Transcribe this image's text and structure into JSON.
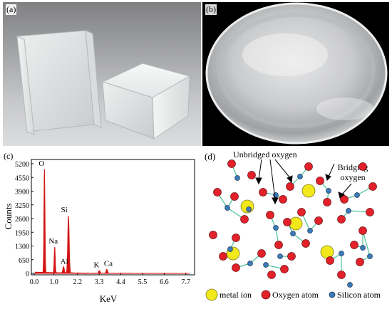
{
  "panels": {
    "a": {
      "label": "(a)"
    },
    "b": {
      "label": "(b)"
    },
    "c": {
      "label": "(c)"
    },
    "d": {
      "label": "(d)"
    }
  },
  "chart_data": {
    "type": "line",
    "xlabel": "KeV",
    "ylabel": "Counts",
    "xlim": [
      0.0,
      8.0
    ],
    "ylim": [
      0,
      5200
    ],
    "x_ticks": [
      "0.0",
      "1.0",
      "2.2",
      "3.3",
      "4.4",
      "5.5",
      "6.6",
      "7.7"
    ],
    "y_ticks": [
      "0",
      "650",
      "1300",
      "1950",
      "2600",
      "3250",
      "3900",
      "4550",
      "5200"
    ],
    "peaks": [
      {
        "element": "O",
        "energy": 0.52,
        "counts": 4900
      },
      {
        "element": "Na",
        "energy": 1.04,
        "counts": 1220
      },
      {
        "element": "Al",
        "energy": 1.49,
        "counts": 290
      },
      {
        "element": "Si",
        "energy": 1.74,
        "counts": 2700
      },
      {
        "element": "K",
        "energy": 3.31,
        "counts": 120
      },
      {
        "element": "Ca",
        "energy": 3.69,
        "counts": 180
      }
    ],
    "series_color": "#d41414",
    "grid": false
  },
  "diagram": {
    "annotations": {
      "unbridged": "Unbridged oxygen",
      "bridging_1": "Bridging",
      "bridging_2": "oxygen"
    },
    "legend": [
      {
        "label": "metal ion",
        "color": "#f2e81c"
      },
      {
        "label": "Oxygen atom",
        "color": "#e2212a"
      },
      {
        "label": "Silicon atom",
        "color": "#3c7ab8"
      }
    ]
  }
}
